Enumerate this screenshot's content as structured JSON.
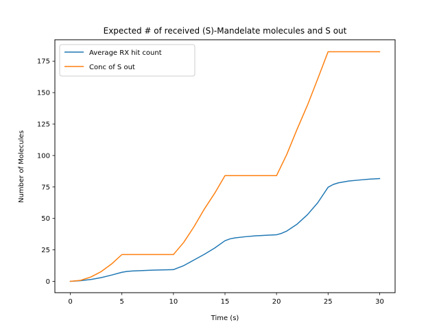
{
  "chart_data": {
    "type": "line",
    "title": "Expected # of received (S)-Mandelate molecules and S out",
    "xlabel": "Time (s)",
    "ylabel": "Number of Molecules",
    "xlim": [
      -1.5,
      31.5
    ],
    "ylim": [
      -9,
      192
    ],
    "xticks": [
      0,
      5,
      10,
      15,
      20,
      25,
      30
    ],
    "yticks": [
      0,
      25,
      50,
      75,
      100,
      125,
      150,
      175
    ],
    "grid": false,
    "legend": "upper left",
    "series": [
      {
        "name": "Average RX hit count",
        "color": "#1f77b4",
        "x": [
          0,
          1,
          2,
          3,
          4,
          5,
          5.5,
          6,
          7,
          8,
          9,
          10,
          11,
          12,
          13,
          14,
          15,
          15.5,
          16,
          17,
          18,
          19,
          20,
          20.5,
          21,
          22,
          23,
          24,
          25,
          25.5,
          26,
          27,
          28,
          29,
          30
        ],
        "y": [
          0,
          0.5,
          1.5,
          3,
          5,
          7.2,
          7.9,
          8.2,
          8.6,
          8.9,
          9.1,
          9.3,
          12.5,
          17,
          21.5,
          26.5,
          32.3,
          33.8,
          34.6,
          35.5,
          36.2,
          36.6,
          37.0,
          38.2,
          40,
          45.5,
          53,
          62.5,
          74.8,
          77,
          78.3,
          79.7,
          80.5,
          81.2,
          81.7
        ]
      },
      {
        "name": "Conc of S out",
        "color": "#ff7f0e",
        "x": [
          0,
          1,
          2,
          3,
          4,
          5,
          6,
          7,
          8,
          9,
          10,
          11,
          12,
          13,
          14,
          15,
          16,
          17,
          18,
          19,
          20,
          21,
          22,
          23,
          24,
          25,
          26,
          27,
          28,
          29,
          30
        ],
        "y": [
          0,
          0.8,
          3.5,
          7.8,
          13.8,
          21.3,
          21.3,
          21.3,
          21.3,
          21.3,
          21.3,
          31,
          43.5,
          57.5,
          70,
          84,
          84,
          84,
          84,
          84,
          84,
          101,
          121,
          140,
          161,
          182.5,
          182.5,
          182.5,
          182.5,
          182.5,
          182.5
        ]
      }
    ]
  }
}
